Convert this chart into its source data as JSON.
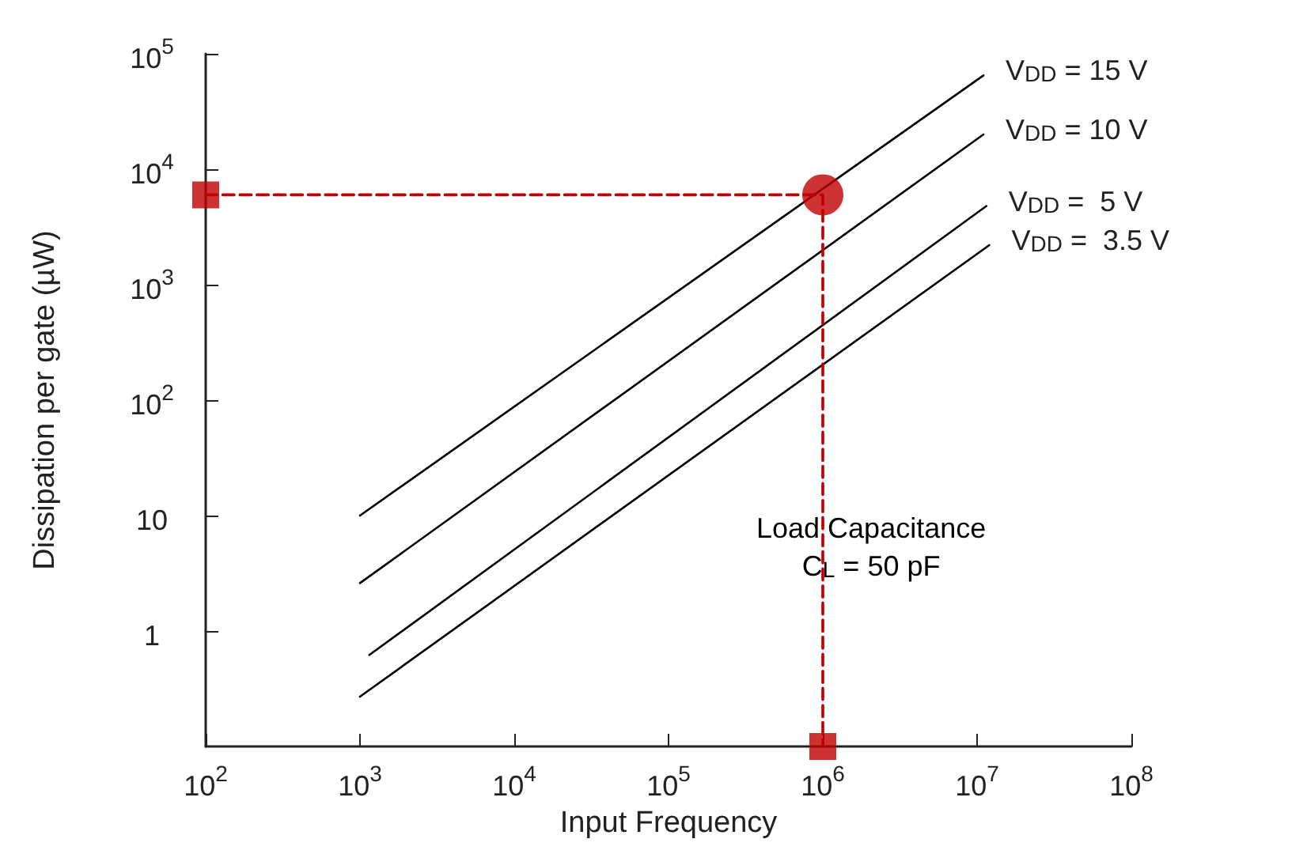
{
  "chart_data": {
    "type": "line",
    "xlabel": "Input Frequency",
    "ylabel": "Dissipation per gate (µW)",
    "log": "xy",
    "xlim": [
      100,
      100000000
    ],
    "ylim": [
      0.1,
      100000
    ],
    "xticks": [
      {
        "value": 100,
        "label": "10$^{2}$"
      },
      {
        "value": 1000,
        "label": "10$^{3}$"
      },
      {
        "value": 10000,
        "label": "10$^{4}$"
      },
      {
        "value": 100000,
        "label": "10$^{5}$"
      },
      {
        "value": 1000000,
        "label": "10$^{6}$"
      },
      {
        "value": 10000000,
        "label": "10$^{7}$"
      },
      {
        "value": 100000000,
        "label": "10$^{8}$"
      }
    ],
    "yticks": [
      1,
      10,
      {
        "value": 100,
        "label": "10$^{2}$"
      },
      {
        "value": 1000,
        "label": "10$^{3}$"
      },
      {
        "value": 10000,
        "label": "10$^{4}$"
      },
      {
        "value": 100000,
        "label": "10$^{5}$"
      }
    ],
    "grid": false,
    "legend": false,
    "marker": "none",
    "line_style": "solid",
    "annotations": [
      "Load Capacitance\nC$_{L}$ = 50 pF"
    ],
    "series": [
      {
        "name": "V$_{DD}$ = 15 V",
        "color": "#000000",
        "x": [
          1000,
          11000000
        ],
        "values": [
          10,
          65000
        ]
      },
      {
        "name": "V$_{DD}$ = 10 V",
        "color": "#000000",
        "x": [
          1000,
          11000000
        ],
        "values": [
          2.6,
          20000
        ]
      },
      {
        "name": "V$_{DD}$ =  5 V",
        "color": "#000000",
        "x": [
          1150,
          11500000
        ],
        "values": [
          0.62,
          4800
        ]
      },
      {
        "name": "V$_{DD}$ =  3.5 V",
        "color": "#000000",
        "x": [
          1000,
          12000000
        ],
        "values": [
          0.27,
          2200
        ]
      },
      {
        "type": "line",
        "color": "#c00000",
        "line_style": "dashed",
        "x": [
          100,
          1000000,
          1000000
        ],
        "values": [
          6000,
          6000,
          0.1
        ]
      },
      {
        "type": "scatter",
        "color": "#c00000",
        "marker": "square",
        "x": [
          100,
          1000000
        ],
        "values": [
          6000,
          0.1
        ]
      },
      {
        "type": "scatter",
        "color": "#c00000",
        "marker": "circle",
        "x": [
          1000000
        ],
        "values": [
          6000
        ]
      }
    ]
  }
}
